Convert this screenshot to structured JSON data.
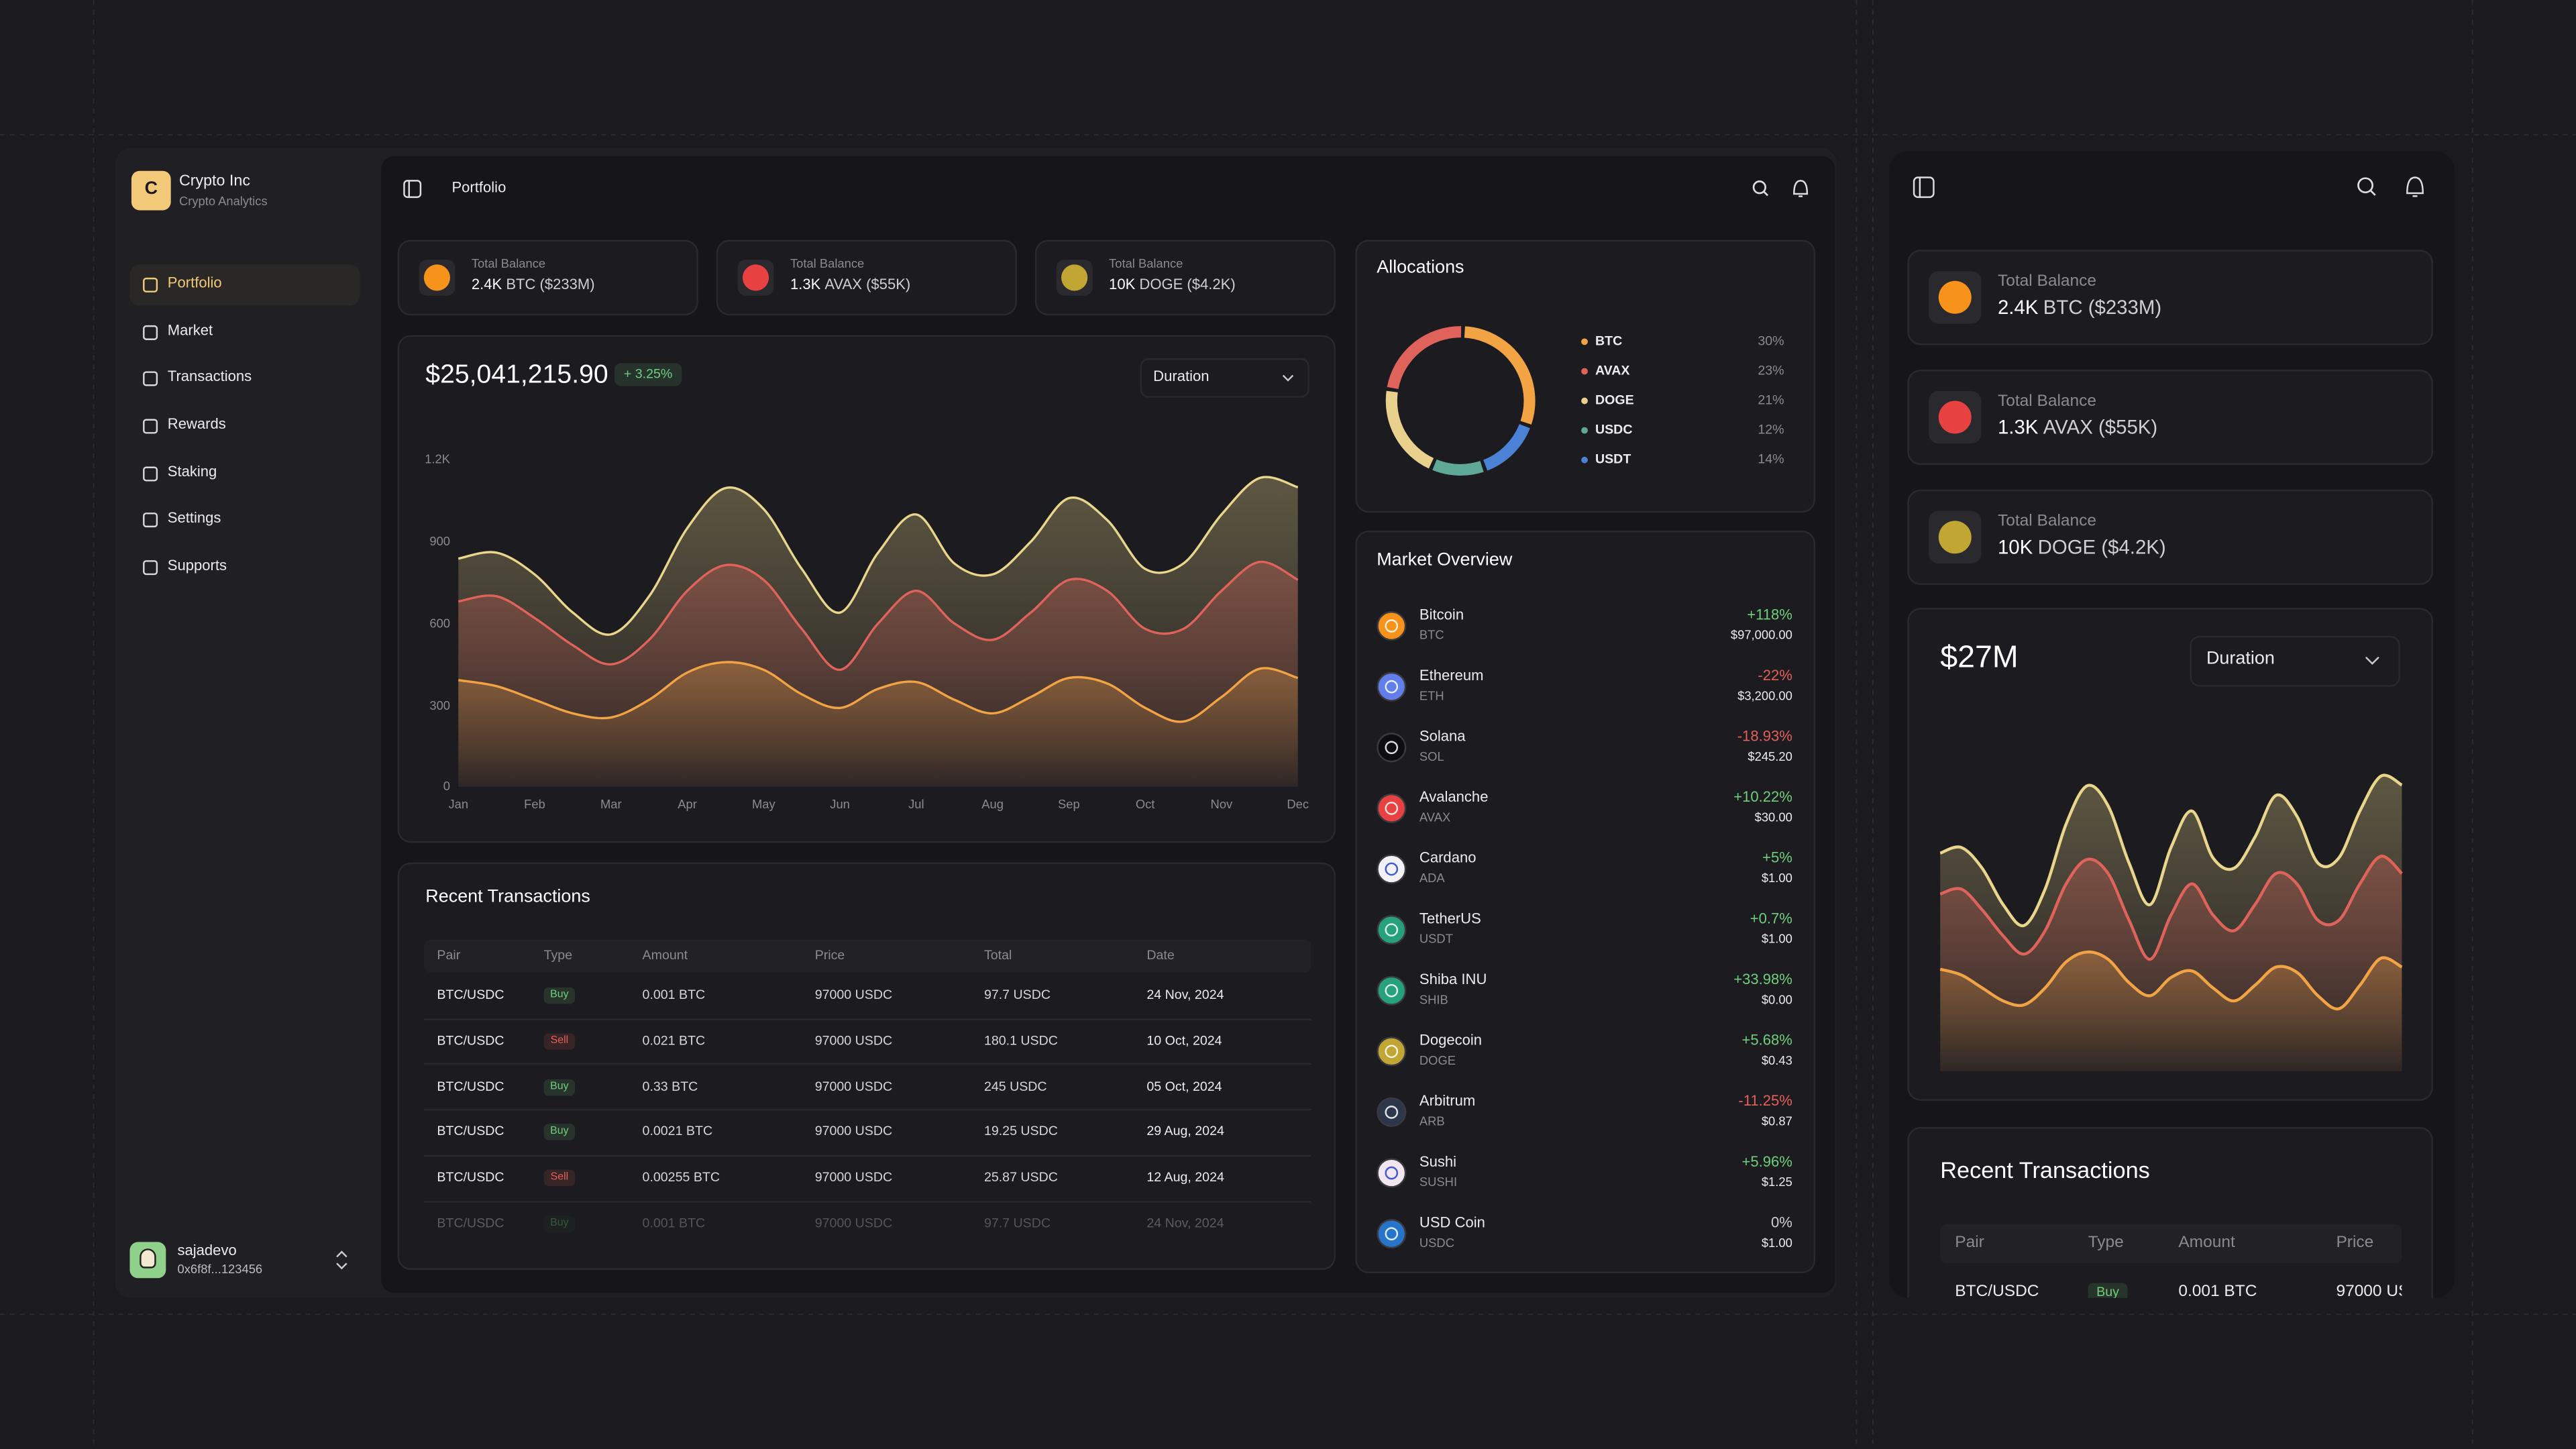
{
  "sidebar": {
    "logo": "C",
    "brand": "Crypto Inc",
    "tagline": "Crypto Analytics",
    "nav": [
      "Portfolio",
      "Market",
      "Transactions",
      "Rewards",
      "Staking",
      "Settings",
      "Supports"
    ],
    "user": {
      "name": "sajadevo",
      "address": "0x6f8f...123456"
    }
  },
  "header": {
    "title": "Portfolio"
  },
  "balances": [
    {
      "label": "Total Balance",
      "amount": "2.4K",
      "detail": "BTC ($233M)"
    },
    {
      "label": "Total Balance",
      "amount": "1.3K",
      "detail": "AVAX ($55K)"
    },
    {
      "label": "Total Balance",
      "amount": "10K",
      "detail": "DOGE ($4.2K)"
    }
  ],
  "portfolio": {
    "total": "$25,041,215.90",
    "change": "+ 3.25%",
    "duration": "Duration"
  },
  "chart_data": {
    "type": "area",
    "categories": [
      "Jan",
      null,
      "Feb",
      null,
      "Mar",
      null,
      "Apr",
      null,
      "May",
      null,
      "Jun",
      null,
      "Jul",
      null,
      "Aug",
      null,
      "Sep",
      null,
      "Oct",
      null,
      "Nov",
      null,
      "Dec"
    ],
    "series": [
      {
        "color": "#e9d68c",
        "values": [
          838,
          860,
          780,
          640,
          560,
          700,
          950,
          1097,
          1020,
          800,
          640,
          860,
          1000,
          820,
          780,
          900,
          1060,
          980,
          800,
          820,
          1000,
          1134,
          1100
        ]
      },
      {
        "color": "#e0635b",
        "values": [
          681,
          700,
          620,
          520,
          450,
          540,
          720,
          814,
          760,
          580,
          430,
          600,
          720,
          600,
          540,
          640,
          760,
          720,
          580,
          580,
          720,
          826,
          760
        ]
      },
      {
        "color": "#f2a445",
        "values": [
          392,
          370,
          320,
          270,
          255,
          320,
          420,
          458,
          430,
          340,
          290,
          360,
          385,
          320,
          270,
          330,
          400,
          380,
          290,
          240,
          330,
          434,
          400
        ]
      }
    ],
    "ylim": [
      0,
      1200
    ],
    "yticks": [
      0,
      300,
      600,
      900,
      {
        "value": 1200,
        "label": "1.2K"
      }
    ],
    "grid": false
  },
  "allocations": {
    "title": "Allocations",
    "items": [
      {
        "name": "BTC",
        "value": 30,
        "value_label": "30%",
        "color": "#f2a445"
      },
      {
        "name": "AVAX",
        "value": 23,
        "value_label": "23%",
        "color": "#e0635b"
      },
      {
        "name": "DOGE",
        "value": 21,
        "value_label": "21%",
        "color": "#e9d08c"
      },
      {
        "name": "USDC",
        "value": 12,
        "value_label": "12%",
        "color": "#5fa898"
      },
      {
        "name": "USDT",
        "value": 14,
        "value_label": "14%",
        "color": "#4b82d6"
      }
    ]
  },
  "market": {
    "title": "Market Overview",
    "coins": [
      {
        "name": "Bitcoin",
        "symbol": "BTC",
        "change": "+118%",
        "price": "$97,000.00"
      },
      {
        "name": "Ethereum",
        "symbol": "ETH",
        "change": "-22%",
        "price": "$3,200.00"
      },
      {
        "name": "Solana",
        "symbol": "SOL",
        "change": "-18.93%",
        "price": "$245.20"
      },
      {
        "name": "Avalanche",
        "symbol": "AVAX",
        "change": "+10.22%",
        "price": "$30.00"
      },
      {
        "name": "Cardano",
        "symbol": "ADA",
        "change": "+5%",
        "price": "$1.00"
      },
      {
        "name": "TetherUS",
        "symbol": "USDT",
        "change": "+0.7%",
        "price": "$1.00"
      },
      {
        "name": "Shiba INU",
        "symbol": "SHIB",
        "change": "+33.98%",
        "price": "$0.00"
      },
      {
        "name": "Dogecoin",
        "symbol": "DOGE",
        "change": "+5.68%",
        "price": "$0.43"
      },
      {
        "name": "Arbitrum",
        "symbol": "ARB",
        "change": "-11.25%",
        "price": "$0.87"
      },
      {
        "name": "Sushi",
        "symbol": "SUSHI",
        "change": "+5.96%",
        "price": "$1.25"
      },
      {
        "name": "USD Coin",
        "symbol": "USDC",
        "change": "0%",
        "price": "$1.00"
      }
    ]
  },
  "transactions": {
    "title": "Recent Transactions",
    "columns": [
      "Pair",
      "Type",
      "Amount",
      "Price",
      "Total",
      "Date"
    ],
    "badge_colors": {
      "Buy": "#6fcf7f",
      "Sell": "#e5605a"
    },
    "rows": [
      [
        "BTC/USDC",
        "Buy",
        "0.001 BTC",
        "97000 USDC",
        "97.7 USDC",
        "24 Nov, 2024"
      ],
      [
        "BTC/USDC",
        "Sell",
        "0.021 BTC",
        "97000 USDC",
        "180.1 USDC",
        "10 Oct, 2024"
      ],
      [
        "BTC/USDC",
        "Buy",
        "0.33 BTC",
        "97000 USDC",
        "245 USDC",
        "05 Oct, 2024"
      ],
      [
        "BTC/USDC",
        "Buy",
        "0.0021 BTC",
        "97000 USDC",
        "19.25 USDC",
        "29 Aug, 2024"
      ],
      [
        "BTC/USDC",
        "Sell",
        "0.00255 BTC",
        "97000 USDC",
        "25.87 USDC",
        "12 Aug, 2024"
      ],
      [
        "BTC/USDC",
        "Buy",
        "0.001 BTC",
        "97000 USDC",
        "97.7 USDC",
        "24 Nov, 2024"
      ]
    ]
  },
  "mobile": {
    "total": "$27M"
  }
}
